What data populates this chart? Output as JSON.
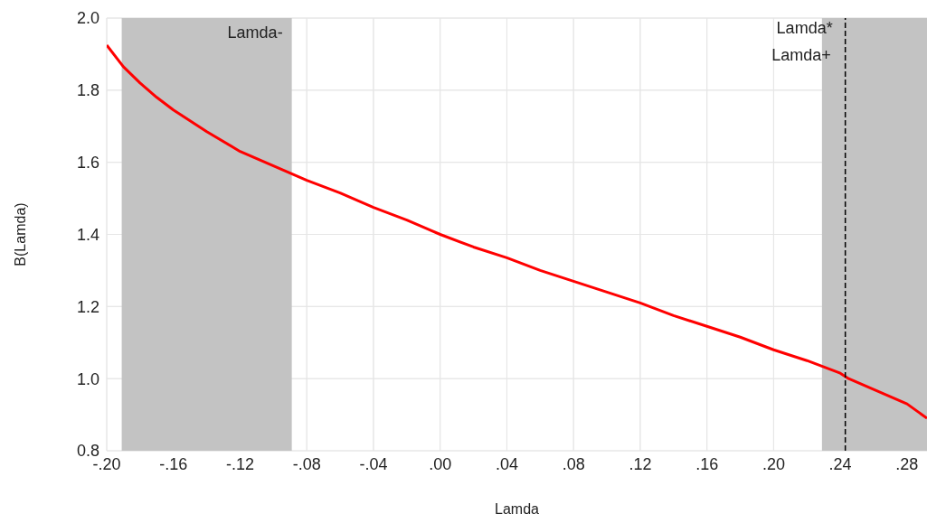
{
  "chart_data": {
    "type": "line",
    "xlabel": "Lamda",
    "ylabel": "B(Lamda)",
    "x": [
      -0.2,
      -0.19,
      -0.18,
      -0.17,
      -0.16,
      -0.14,
      -0.12,
      -0.1,
      -0.08,
      -0.06,
      -0.04,
      -0.02,
      0,
      0.02,
      0.04,
      0.06,
      0.08,
      0.1,
      0.12,
      0.14,
      0.16,
      0.18,
      0.2,
      0.22,
      0.24,
      0.245,
      0.26,
      0.28,
      0.292
    ],
    "series": [
      {
        "color": "#ff0000",
        "values": [
          1.925,
          1.865,
          1.82,
          1.78,
          1.745,
          1.685,
          1.63,
          1.59,
          1.55,
          1.515,
          1.475,
          1.44,
          1.4,
          1.365,
          1.335,
          1.3,
          1.27,
          1.24,
          1.21,
          1.175,
          1.145,
          1.115,
          1.08,
          1.05,
          1.015,
          1.0,
          0.97,
          0.93,
          0.89
        ]
      }
    ],
    "xlim": [
      -0.2,
      0.292
    ],
    "xticks": [
      {
        "value": -0.2,
        "label": "-.20"
      },
      {
        "value": -0.16,
        "label": "-.16"
      },
      {
        "value": -0.12,
        "label": "-.12"
      },
      {
        "value": -0.08,
        "label": "-.08"
      },
      {
        "value": -0.04,
        "label": "-.04"
      },
      {
        "value": 0,
        "label": ".00"
      },
      {
        "value": 0.04,
        "label": ".04"
      },
      {
        "value": 0.08,
        "label": ".08"
      },
      {
        "value": 0.12,
        "label": ".12"
      },
      {
        "value": 0.16,
        "label": ".16"
      },
      {
        "value": 0.2,
        "label": ".20"
      },
      {
        "value": 0.24,
        "label": ".24"
      },
      {
        "value": 0.28,
        "label": ".28"
      }
    ],
    "ylim": [
      0.8,
      2.0
    ],
    "yticks": [
      {
        "value": 0.8,
        "label": "0.8"
      },
      {
        "value": 1.0,
        "label": "1.0"
      },
      {
        "value": 1.2,
        "label": "1.2"
      },
      {
        "value": 1.4,
        "label": "1.4"
      },
      {
        "value": 1.6,
        "label": "1.6"
      },
      {
        "value": 1.8,
        "label": "1.8"
      },
      {
        "value": 2.0,
        "label": "2.0"
      }
    ],
    "grid": true,
    "legend": false,
    "marker": "none",
    "line_style": "solid",
    "bands": [
      {
        "axis": "x",
        "from": -0.191,
        "to": -0.089,
        "label": "Lamda-",
        "color": "#c3c3c3"
      },
      {
        "axis": "x",
        "from": 0.229,
        "to": 0.292,
        "label": "Lamda+",
        "color": "#c3c3c3"
      }
    ],
    "ref_lines": [
      {
        "axis": "x",
        "value": 0.243,
        "label": "Lamda*",
        "color": "#000000",
        "line_style": "dashed"
      }
    ]
  }
}
